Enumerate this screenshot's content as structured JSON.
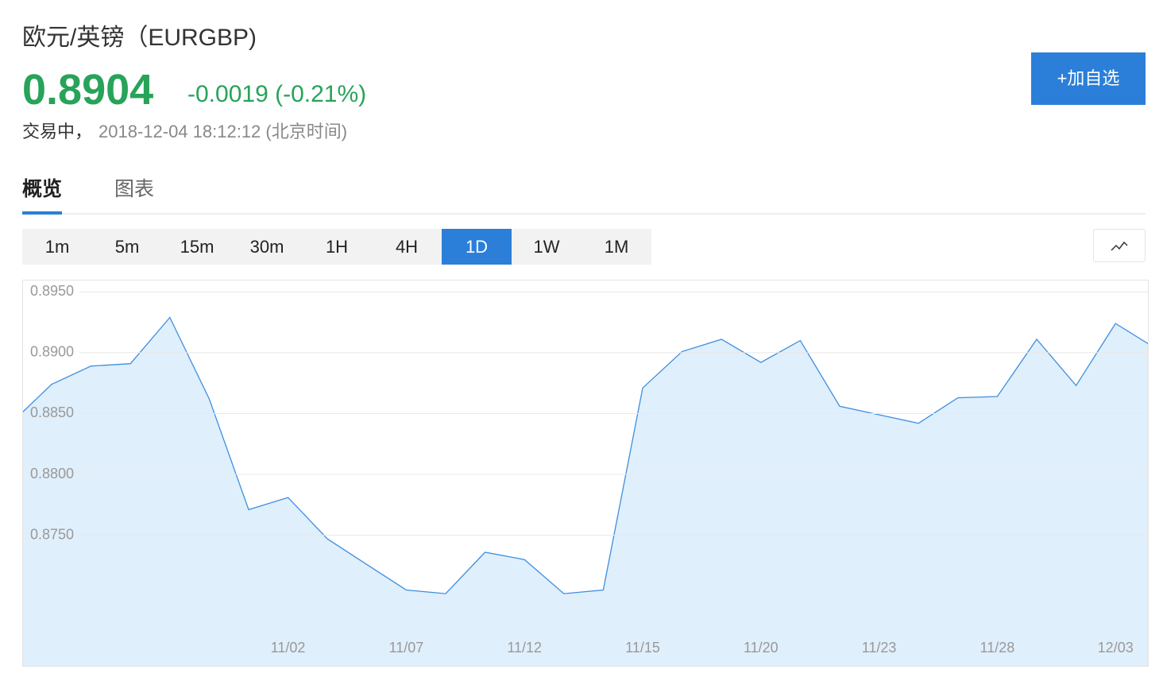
{
  "header": {
    "title": "欧元/英镑（EURGBP)",
    "price": "0.8904",
    "change": "-0.0019 (-0.21%)",
    "status": "交易中，",
    "time": "2018-12-04 18:12:12 (北京时间)",
    "button": "+加自选"
  },
  "tabs": {
    "items": [
      "概览",
      "图表"
    ],
    "active": 0
  },
  "intervals": {
    "items": [
      "1m",
      "5m",
      "15m",
      "30m",
      "1H",
      "4H",
      "1D",
      "1W",
      "1M"
    ],
    "active": 6
  },
  "chart_data": {
    "type": "area",
    "categories": [
      null,
      null,
      null,
      null,
      null,
      null,
      null,
      "11/02",
      null,
      null,
      "11/07",
      null,
      null,
      "11/12",
      null,
      null,
      "11/15",
      null,
      null,
      "11/20",
      null,
      null,
      "11/23",
      null,
      null,
      "11/28",
      null,
      null,
      "12/03",
      null
    ],
    "values": [
      0.8843,
      0.8874,
      0.8889,
      0.8891,
      0.8929,
      0.8862,
      0.8771,
      0.8781,
      0.8747,
      0.8726,
      0.8705,
      0.8702,
      0.8736,
      0.873,
      0.8702,
      0.8705,
      0.8871,
      0.8901,
      0.8911,
      0.8892,
      0.891,
      0.8856,
      0.8849,
      0.8842,
      0.8863,
      0.8864,
      0.8911,
      0.8873,
      0.8924,
      0.8904
    ],
    "color": "#3d8fe0",
    "fill": "#e0effc",
    "ylim": [
      0.8642,
      0.896
    ],
    "yticks": [
      {
        "value": 0.875,
        "label": "0.8750"
      },
      {
        "value": 0.88,
        "label": "0.8800"
      },
      {
        "value": 0.885,
        "label": "0.8850"
      },
      {
        "value": 0.89,
        "label": "0.8900"
      },
      {
        "value": 0.895,
        "label": "0.8950"
      }
    ],
    "grid": true
  }
}
